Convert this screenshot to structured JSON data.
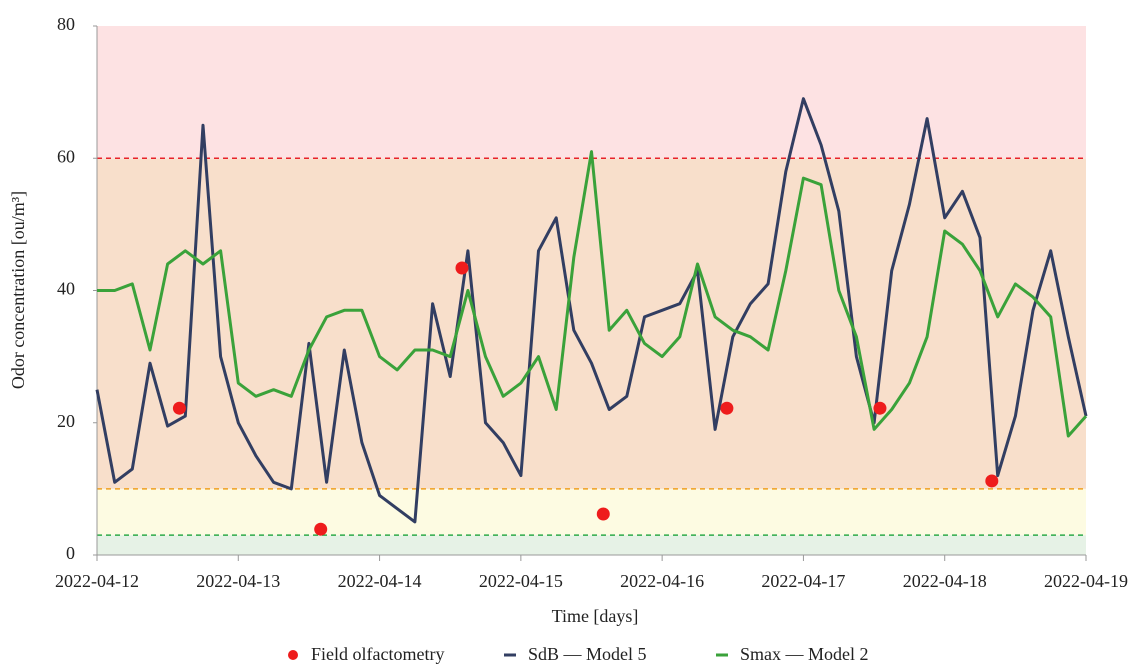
{
  "chart_data": {
    "type": "line",
    "xlabel": "Time [days]",
    "ylabel": "Odor concentration [ou/m³]",
    "xlim": [
      "2022-04-12",
      "2022-04-19"
    ],
    "xticks": [
      "2022-04-12",
      "2022-04-13",
      "2022-04-14",
      "2022-04-15",
      "2022-04-16",
      "2022-04-17",
      "2022-04-18",
      "2022-04-19"
    ],
    "ylim": [
      0,
      80
    ],
    "yticks": [
      0,
      20,
      40,
      60,
      80
    ],
    "bands": [
      {
        "from": 0,
        "to": 3,
        "color": "#e6f2e6"
      },
      {
        "from": 3,
        "to": 10,
        "color": "#fdfbe2"
      },
      {
        "from": 10,
        "to": 60,
        "color": "#f8dfcb"
      },
      {
        "from": 60,
        "to": 80,
        "color": "#fde2e3"
      }
    ],
    "thresholds": [
      {
        "value": 3,
        "color": "#2eaa4a"
      },
      {
        "value": 10,
        "color": "#f0a020"
      },
      {
        "value": 60,
        "color": "#e8222a"
      }
    ],
    "x": [
      "2022-04-12T00:00",
      "2022-04-12T03:00",
      "2022-04-12T06:00",
      "2022-04-12T09:00",
      "2022-04-12T12:00",
      "2022-04-12T15:00",
      "2022-04-12T18:00",
      "2022-04-12T21:00",
      "2022-04-13T00:00",
      "2022-04-13T03:00",
      "2022-04-13T06:00",
      "2022-04-13T09:00",
      "2022-04-13T12:00",
      "2022-04-13T15:00",
      "2022-04-13T18:00",
      "2022-04-13T21:00",
      "2022-04-14T00:00",
      "2022-04-14T03:00",
      "2022-04-14T06:00",
      "2022-04-14T09:00",
      "2022-04-14T12:00",
      "2022-04-14T15:00",
      "2022-04-14T18:00",
      "2022-04-14T21:00",
      "2022-04-15T00:00",
      "2022-04-15T03:00",
      "2022-04-15T06:00",
      "2022-04-15T09:00",
      "2022-04-15T12:00",
      "2022-04-15T15:00",
      "2022-04-15T18:00",
      "2022-04-15T21:00",
      "2022-04-16T00:00",
      "2022-04-16T03:00",
      "2022-04-16T06:00",
      "2022-04-16T09:00",
      "2022-04-16T12:00",
      "2022-04-16T15:00",
      "2022-04-16T18:00",
      "2022-04-16T21:00",
      "2022-04-17T00:00",
      "2022-04-17T03:00",
      "2022-04-17T06:00",
      "2022-04-17T09:00",
      "2022-04-17T12:00",
      "2022-04-17T15:00",
      "2022-04-17T18:00",
      "2022-04-17T21:00",
      "2022-04-18T00:00",
      "2022-04-18T03:00",
      "2022-04-18T06:00",
      "2022-04-18T09:00",
      "2022-04-18T12:00",
      "2022-04-18T15:00",
      "2022-04-18T18:00",
      "2022-04-18T21:00",
      "2022-04-19T00:00"
    ],
    "series": [
      {
        "name": "Field olfactometry",
        "type": "scatter",
        "color": "#ee1c1c",
        "x": [
          "2022-04-12T14:00",
          "2022-04-13T14:00",
          "2022-04-14T14:00",
          "2022-04-15T14:00",
          "2022-04-16T11:00",
          "2022-04-17T13:00",
          "2022-04-18T08:00"
        ],
        "values": [
          22.2,
          3.9,
          43.4,
          6.2,
          22.2,
          22.2,
          11.2
        ]
      },
      {
        "name": "SdB — Model 5",
        "type": "line",
        "color": "#323e62",
        "values": [
          25,
          11,
          13,
          29,
          19.5,
          21,
          65,
          30,
          20,
          15,
          11,
          10,
          32,
          11,
          31,
          17,
          9,
          7,
          5,
          38,
          27,
          46,
          20,
          17,
          12,
          46,
          51,
          34,
          29,
          22,
          24,
          36,
          37,
          38,
          43,
          19,
          33,
          38,
          41,
          58,
          69,
          62,
          52,
          30,
          20,
          43,
          53,
          66,
          51,
          55,
          48,
          12,
          21,
          37,
          46,
          33,
          21
        ]
      },
      {
        "name": "Smax — Model 2",
        "type": "line",
        "color": "#3aa23a",
        "values": [
          40,
          40,
          41,
          31,
          44,
          46,
          44,
          46,
          26,
          24,
          25,
          24,
          31,
          36,
          37,
          37,
          30,
          28,
          31,
          31,
          30,
          40,
          30,
          24,
          26,
          30,
          22,
          45,
          61,
          34,
          37,
          32,
          30,
          33,
          44,
          36,
          34,
          33,
          31,
          43,
          57,
          56,
          40,
          33,
          19,
          22,
          26,
          33,
          49,
          47,
          43,
          36,
          41,
          39,
          36,
          18,
          21
        ]
      }
    ]
  }
}
